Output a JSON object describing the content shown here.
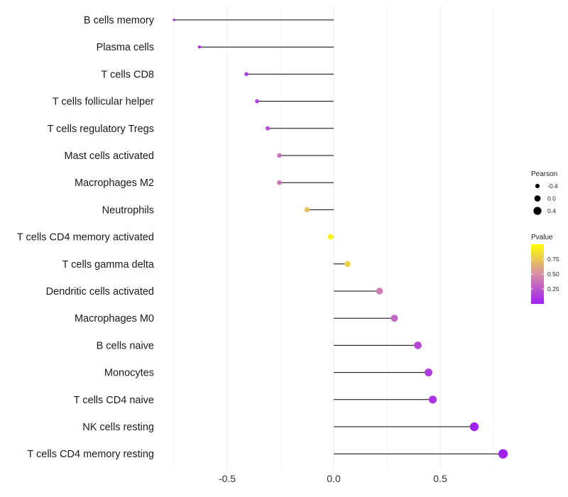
{
  "chart_data": {
    "type": "lollipop",
    "title": "",
    "xlabel": "",
    "ylabel": "",
    "xlim": [
      -0.75,
      0.8
    ],
    "x_ticks": [
      {
        "value": -0.5,
        "label": "-0.5"
      },
      {
        "value": 0.0,
        "label": "0.0"
      },
      {
        "value": 0.5,
        "label": "0.5"
      }
    ],
    "categories": [
      "B cells memory",
      "Plasma cells",
      "T cells CD8",
      "T cells follicular helper",
      "T cells regulatory  Tregs ",
      "Mast cells activated",
      "Macrophages M2",
      "Neutrophils",
      "T cells CD4 memory activated",
      "T cells gamma delta",
      "Dendritic cells activated",
      "Macrophages M0",
      "B cells naive",
      "Monocytes",
      "T cells CD4 naive",
      "NK cells resting",
      "T cells CD4 memory resting"
    ],
    "pearson": [
      -0.75,
      -0.63,
      -0.41,
      -0.36,
      -0.31,
      -0.255,
      -0.255,
      -0.125,
      -0.015,
      0.065,
      0.215,
      0.285,
      0.395,
      0.445,
      0.465,
      0.66,
      0.795
    ],
    "pvalue": [
      0.001,
      0.005,
      0.11,
      0.16,
      0.22,
      0.38,
      0.38,
      0.72,
      0.95,
      0.8,
      0.42,
      0.32,
      0.18,
      0.12,
      0.1,
      0.01,
      0.001
    ],
    "legend_size": {
      "title": "Pearson",
      "entries": [
        {
          "value": -0.4,
          "label": "-0.4"
        },
        {
          "value": 0.0,
          "label": "0.0"
        },
        {
          "value": 0.4,
          "label": "0.4"
        }
      ]
    },
    "legend_color": {
      "title": "Pvalue",
      "low_color": "#a020f0",
      "mid_color": "#d58fa6",
      "high_color": "#ffff00",
      "range": [
        0.0,
        1.0
      ],
      "ticks": [
        {
          "value": 0.75,
          "label": "0.75"
        },
        {
          "value": 0.5,
          "label": "0.50"
        },
        {
          "value": 0.25,
          "label": "0.25"
        }
      ]
    },
    "grid": true,
    "grid_color": "#ebebeb",
    "segment_color": "#000000"
  }
}
